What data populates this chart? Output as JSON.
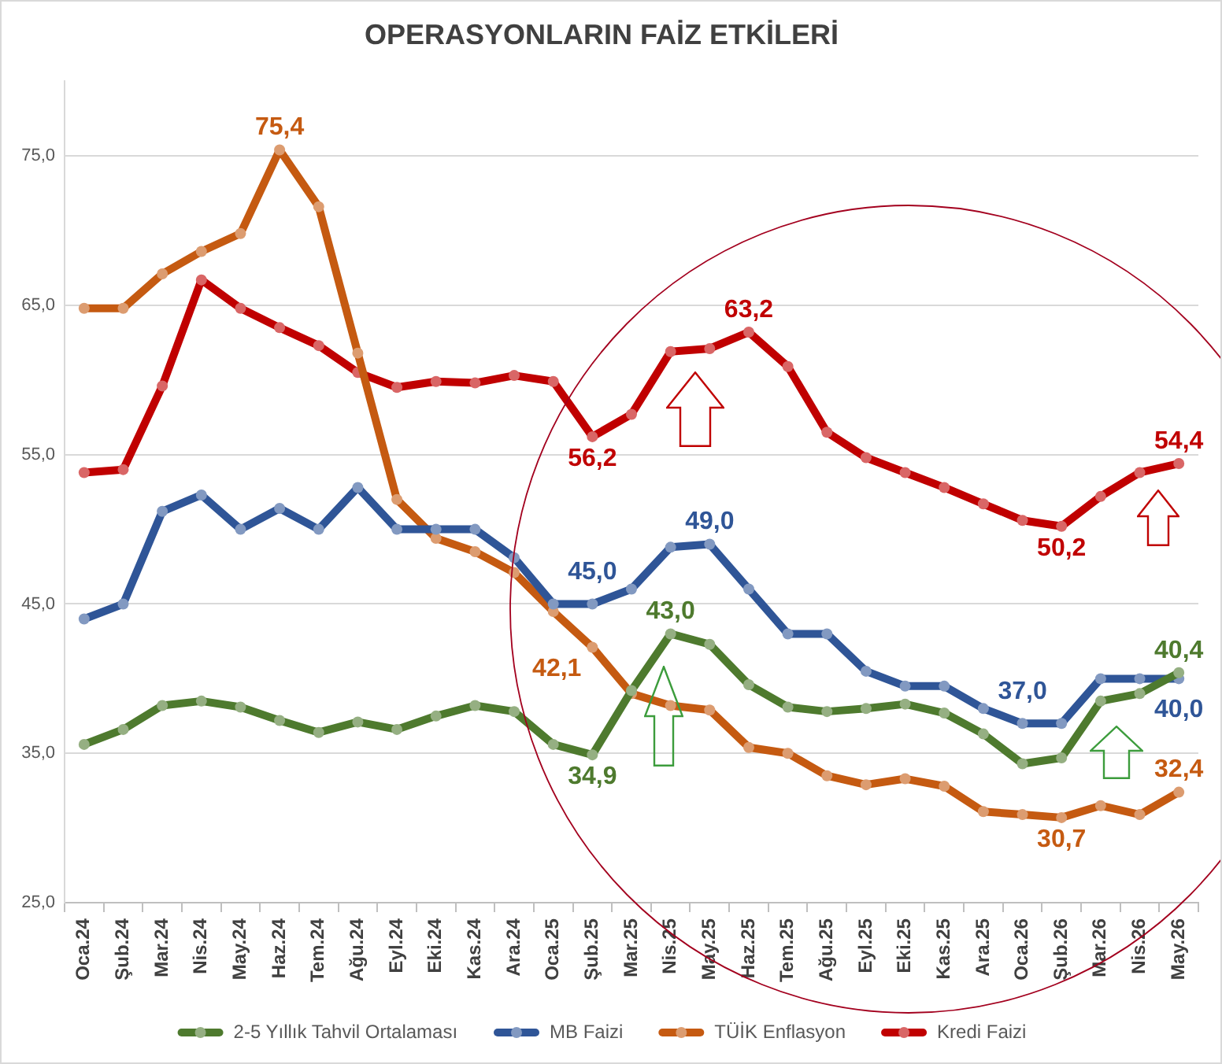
{
  "chart_data": {
    "type": "line",
    "title": "OPERASYONLARIN FAİZ ETKİLERİ",
    "categories": [
      "Oca.24",
      "Şub.24",
      "Mar.24",
      "Nis.24",
      "May.24",
      "Haz.24",
      "Tem.24",
      "Ağu.24",
      "Eyl.24",
      "Eki.24",
      "Kas.24",
      "Ara.24",
      "Oca.25",
      "Şub.25",
      "Mar.25",
      "Nis.25",
      "May.25",
      "Haz.25",
      "Tem.25",
      "Ağu.25",
      "Eyl.25",
      "Eki.25",
      "Kas.25",
      "Ara.25",
      "Oca.26",
      "Şub.26",
      "Mar.26",
      "Nis.26",
      "May.26"
    ],
    "series": [
      {
        "name": "2-5 Yıllık Tahvil Ortalaması",
        "color": "#4e7a2e",
        "values": [
          35.6,
          36.6,
          38.2,
          38.5,
          38.1,
          37.2,
          36.4,
          37.1,
          36.6,
          37.5,
          38.2,
          37.8,
          35.6,
          34.9,
          39.2,
          43.0,
          42.3,
          39.6,
          38.1,
          37.8,
          38.0,
          38.3,
          37.7,
          36.3,
          34.3,
          34.7,
          38.5,
          39.0,
          40.4
        ],
        "value_labels": [
          null,
          null,
          null,
          null,
          null,
          null,
          null,
          null,
          null,
          null,
          null,
          null,
          null,
          "34,9",
          null,
          "43,0",
          null,
          null,
          null,
          null,
          null,
          null,
          null,
          null,
          null,
          null,
          null,
          null,
          "40,4"
        ]
      },
      {
        "name": "MB Faizi",
        "color": "#2f5597",
        "values": [
          44.0,
          45.0,
          51.2,
          52.3,
          50.0,
          51.4,
          50.0,
          52.8,
          50.0,
          50.0,
          50.0,
          48.1,
          45.0,
          45.0,
          46.0,
          48.8,
          49.0,
          46.0,
          43.0,
          43.0,
          40.5,
          39.5,
          39.5,
          38.0,
          37.0,
          37.0,
          40.0,
          40.0,
          40.0
        ],
        "value_labels": [
          null,
          null,
          null,
          null,
          null,
          null,
          null,
          null,
          null,
          null,
          null,
          null,
          null,
          "45,0",
          null,
          null,
          "49,0",
          null,
          null,
          null,
          null,
          null,
          null,
          null,
          "37,0",
          null,
          null,
          null,
          "40,0"
        ]
      },
      {
        "name": "TÜİK Enflasyon",
        "color": "#c55a11",
        "values": [
          64.8,
          64.8,
          67.1,
          68.6,
          69.8,
          75.4,
          71.6,
          61.8,
          52.0,
          49.4,
          48.5,
          47.1,
          44.5,
          42.1,
          39.0,
          38.2,
          37.9,
          35.4,
          35.0,
          33.5,
          32.9,
          33.3,
          32.8,
          31.1,
          30.9,
          30.7,
          31.5,
          30.9,
          32.4
        ],
        "value_labels": [
          null,
          null,
          null,
          null,
          null,
          "75,4",
          null,
          null,
          null,
          null,
          null,
          null,
          null,
          "42,1",
          null,
          null,
          null,
          null,
          null,
          null,
          null,
          null,
          null,
          null,
          null,
          "30,7",
          null,
          null,
          "32,4"
        ]
      },
      {
        "name": "Kredi Faizi",
        "color": "#c00000",
        "values": [
          53.8,
          54.0,
          59.6,
          66.7,
          64.8,
          63.5,
          62.3,
          60.5,
          59.5,
          59.9,
          59.8,
          60.3,
          59.9,
          56.2,
          57.7,
          61.9,
          62.1,
          63.2,
          60.9,
          56.5,
          54.8,
          53.8,
          52.8,
          51.7,
          50.6,
          50.2,
          52.2,
          53.8,
          54.4
        ],
        "value_labels": [
          null,
          null,
          null,
          null,
          null,
          null,
          null,
          null,
          null,
          null,
          null,
          null,
          null,
          "56,2",
          null,
          null,
          null,
          "63,2",
          null,
          null,
          null,
          null,
          null,
          null,
          null,
          "50,2",
          null,
          null,
          "54,4"
        ]
      }
    ],
    "ylim": [
      25,
      80
    ],
    "yticks": [
      {
        "value": 25,
        "label": "25,0"
      },
      {
        "value": 35,
        "label": "35,0"
      },
      {
        "value": 45,
        "label": "45,0"
      },
      {
        "value": 55,
        "label": "55,0"
      },
      {
        "value": 65,
        "label": "65,0"
      },
      {
        "value": 75,
        "label": "75,0"
      }
    ],
    "grid": "y",
    "legend": "bottom",
    "marker": "circle",
    "line_style": "solid"
  }
}
